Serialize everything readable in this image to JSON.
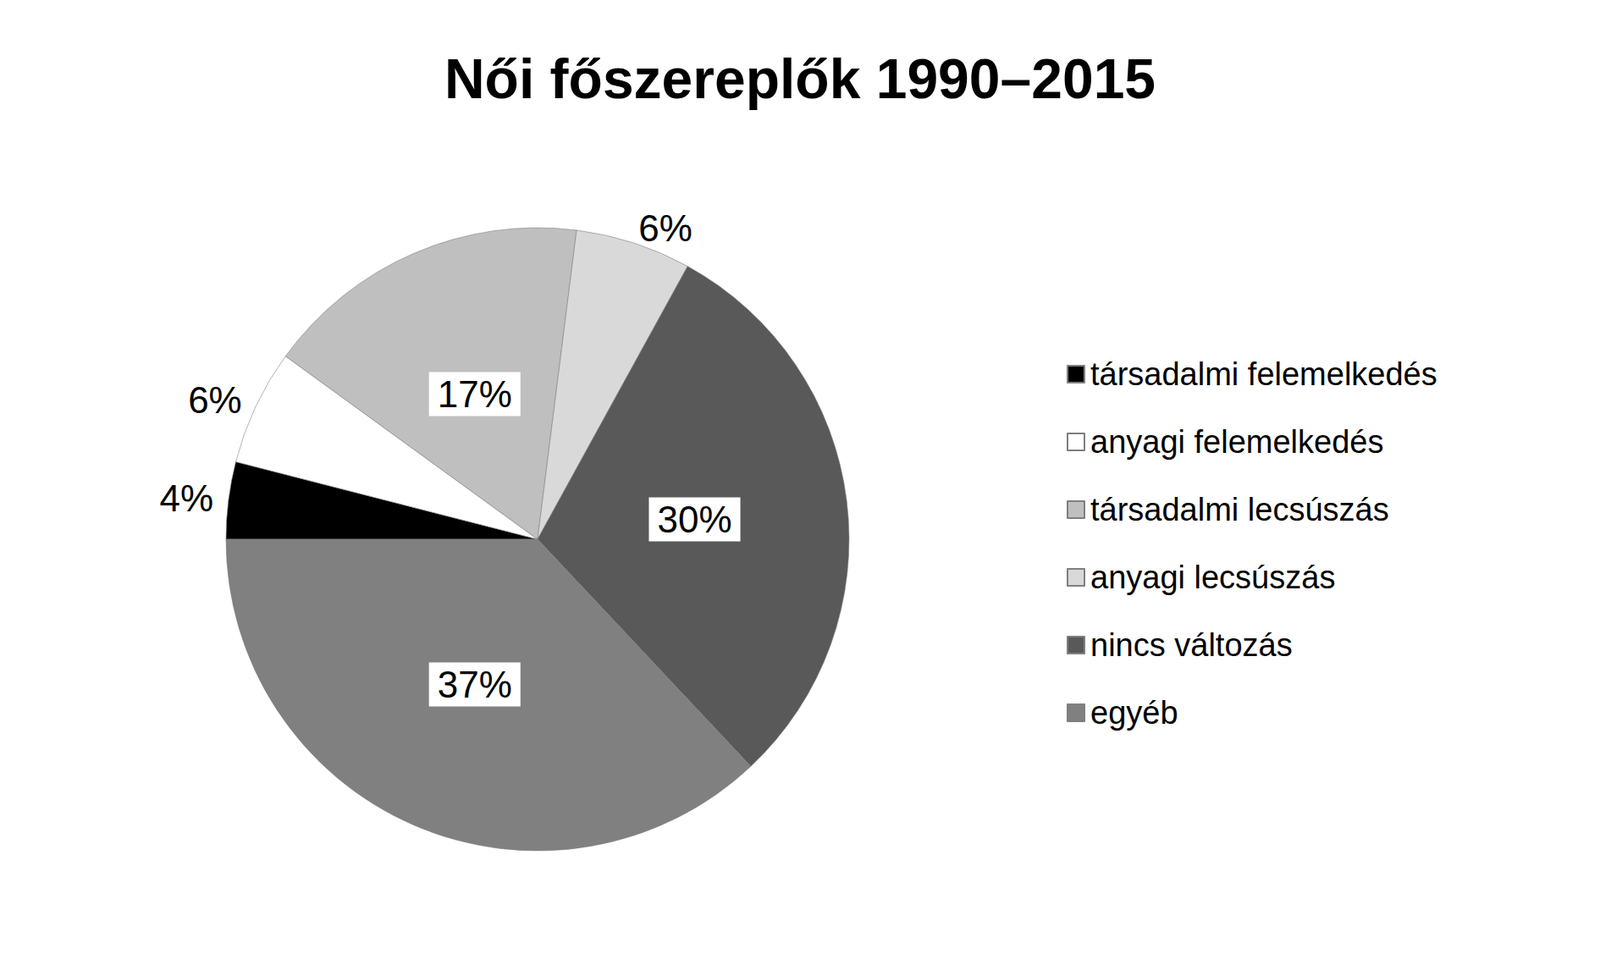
{
  "chart_data": {
    "type": "pie",
    "title": "Női főszereplők 1990–2015",
    "categories": [
      "társadalmi felemelkedés",
      "anyagi felemelkedés",
      "társadalmi lecsúszás",
      "anyagi lecsúszás",
      "nincs változás",
      "egyéb"
    ],
    "values": [
      4,
      6,
      17,
      6,
      30,
      37
    ],
    "value_labels": [
      "4%",
      "6%",
      "17%",
      "6%",
      "30%",
      "37%"
    ],
    "colors": [
      "#000000",
      "#ffffff",
      "#bfbfbf",
      "#d9d9d9",
      "#595959",
      "#808080"
    ],
    "legend": "right",
    "data_labels": true
  }
}
